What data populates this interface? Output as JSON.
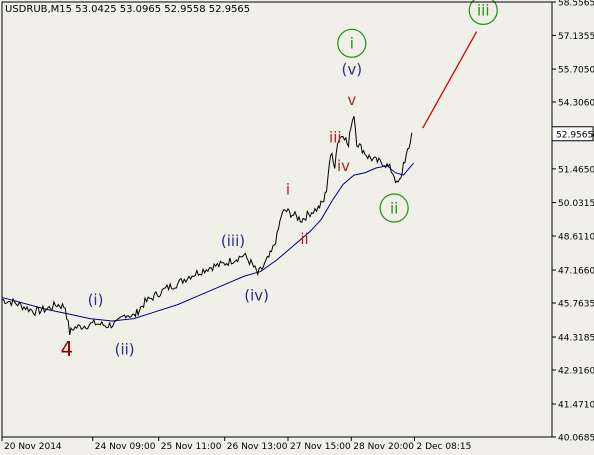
{
  "header": {
    "symbol_line": "USDRUB,M15  53.0425 53.0965 52.9558 52.9565"
  },
  "colors": {
    "background": "#f0f0e8",
    "axis": "#000000",
    "price_line": "#000000",
    "moving_average": "#000080",
    "projection": "#dd0000",
    "label_navy": "#2e2e8a",
    "label_maroon": "#8b0000",
    "label_red": "#b22222",
    "label_green": "#1f8f1f",
    "current_price_bg": "#ffffff"
  },
  "chart_data": {
    "type": "line",
    "instrument": "USDRUB",
    "timeframe": "M15",
    "ohlc_header": {
      "open": 53.0425,
      "high": 53.0965,
      "low": 52.9558,
      "close": 52.9565
    },
    "ylim": [
      40.0685,
      58.5565
    ],
    "xlim": [
      0,
      100
    ],
    "y_ticks": [
      "58.5565",
      "57.1355",
      "55.7050",
      "54.3060",
      "52.9565",
      "51.4650",
      "50.0315",
      "48.6110",
      "47.1660",
      "45.7635",
      "44.3185",
      "42.9160",
      "41.4710",
      "40.0685"
    ],
    "x_ticks": [
      {
        "x": 0,
        "label": "20 Nov 2014"
      },
      {
        "x": 16.5,
        "label": "24 Nov 09:00"
      },
      {
        "x": 28.5,
        "label": "25 Nov 11:00"
      },
      {
        "x": 40.5,
        "label": "26 Nov 13:00"
      },
      {
        "x": 52.0,
        "label": "27 Nov 15:00"
      },
      {
        "x": 63.5,
        "label": "28 Nov 20:00"
      },
      {
        "x": 75.0,
        "label": "2 Dec 08:15"
      }
    ],
    "current_price": "52.9565",
    "price_series": [
      [
        0,
        45.9
      ],
      [
        2,
        45.8
      ],
      [
        4,
        45.6
      ],
      [
        6,
        45.4
      ],
      [
        8,
        45.5
      ],
      [
        10,
        45.7
      ],
      [
        11.5,
        45.6
      ],
      [
        12.3,
        44.5
      ],
      [
        13,
        44.7
      ],
      [
        15,
        44.8
      ],
      [
        17,
        44.9
      ],
      [
        19,
        44.8
      ],
      [
        21,
        44.9
      ],
      [
        22.5,
        45.3
      ],
      [
        24,
        45.2
      ],
      [
        25,
        45.5
      ],
      [
        26,
        45.8
      ],
      [
        28,
        46.1
      ],
      [
        30,
        46.4
      ],
      [
        32,
        46.6
      ],
      [
        34,
        46.9
      ],
      [
        36,
        47.1
      ],
      [
        38,
        47.3
      ],
      [
        40,
        47.4
      ],
      [
        42,
        47.6
      ],
      [
        44,
        47.8
      ],
      [
        45.5,
        47.4
      ],
      [
        46.5,
        47.0
      ],
      [
        47.5,
        47.3
      ],
      [
        49,
        47.9
      ],
      [
        50,
        48.6
      ],
      [
        50.8,
        49.5
      ],
      [
        51.5,
        49.7
      ],
      [
        53,
        49.5
      ],
      [
        54.5,
        49.3
      ],
      [
        56,
        49.6
      ],
      [
        57.5,
        49.8
      ],
      [
        58.5,
        50.1
      ],
      [
        59,
        50.6
      ],
      [
        59.5,
        51.7
      ],
      [
        60,
        52.1
      ],
      [
        60.5,
        51.6
      ],
      [
        61,
        52.6
      ],
      [
        62,
        53.0
      ],
      [
        63,
        52.4
      ],
      [
        63.4,
        53.3
      ],
      [
        64,
        53.8
      ],
      [
        64.5,
        52.6
      ],
      [
        65.5,
        52.3
      ],
      [
        66.5,
        52.0
      ],
      [
        68,
        51.8
      ],
      [
        69.5,
        51.7
      ],
      [
        70.5,
        51.5
      ],
      [
        71.3,
        51.2
      ],
      [
        71.8,
        50.8
      ],
      [
        72.5,
        51.0
      ],
      [
        73,
        51.7
      ],
      [
        73.5,
        52.0
      ],
      [
        74,
        52.3
      ],
      [
        74.5,
        53.0
      ]
    ],
    "moving_average": [
      [
        0,
        46.0
      ],
      [
        8,
        45.5
      ],
      [
        12,
        45.3
      ],
      [
        16,
        45.1
      ],
      [
        20,
        45.0
      ],
      [
        24,
        45.1
      ],
      [
        28,
        45.4
      ],
      [
        32,
        45.7
      ],
      [
        36,
        46.1
      ],
      [
        40,
        46.5
      ],
      [
        44,
        46.9
      ],
      [
        47,
        47.1
      ],
      [
        50,
        47.6
      ],
      [
        53,
        48.2
      ],
      [
        56,
        48.8
      ],
      [
        58,
        49.3
      ],
      [
        60,
        50.1
      ],
      [
        62,
        50.8
      ],
      [
        64,
        51.2
      ],
      [
        66,
        51.3
      ],
      [
        68,
        51.5
      ],
      [
        70,
        51.6
      ],
      [
        71.5,
        51.3
      ],
      [
        73,
        51.2
      ],
      [
        74.8,
        51.7
      ]
    ],
    "projection": {
      "from": [
        76.5,
        53.2
      ],
      "to": [
        86.3,
        57.3
      ]
    },
    "wave_labels": [
      {
        "text": "4",
        "x": 11.8,
        "y": 43.8,
        "color": "maroon",
        "size": "large"
      },
      {
        "text": "(i)",
        "x": 17.0,
        "y": 45.9,
        "color": "navy"
      },
      {
        "text": "(ii)",
        "x": 22.3,
        "y": 43.8,
        "color": "navy"
      },
      {
        "text": "(iii)",
        "x": 42.0,
        "y": 48.4,
        "color": "navy"
      },
      {
        "text": "(iv)",
        "x": 46.3,
        "y": 46.1,
        "color": "navy"
      },
      {
        "text": "i",
        "x": 52.0,
        "y": 50.6,
        "color": "red"
      },
      {
        "text": "ii",
        "x": 55.0,
        "y": 48.5,
        "color": "red"
      },
      {
        "text": "iii",
        "x": 60.6,
        "y": 52.8,
        "color": "red"
      },
      {
        "text": "iv",
        "x": 62.1,
        "y": 51.6,
        "color": "red"
      },
      {
        "text": "v",
        "x": 63.6,
        "y": 54.4,
        "color": "red"
      },
      {
        "text": "(v)",
        "x": 63.6,
        "y": 55.7,
        "color": "navy"
      },
      {
        "text": "i",
        "x": 63.6,
        "y": 56.8,
        "color": "green",
        "circled": true
      },
      {
        "text": "ii",
        "x": 71.3,
        "y": 49.8,
        "color": "green",
        "circled": true
      },
      {
        "text": "iii",
        "x": 87.5,
        "y": 58.2,
        "color": "green",
        "circled": true
      }
    ],
    "grid": false
  }
}
